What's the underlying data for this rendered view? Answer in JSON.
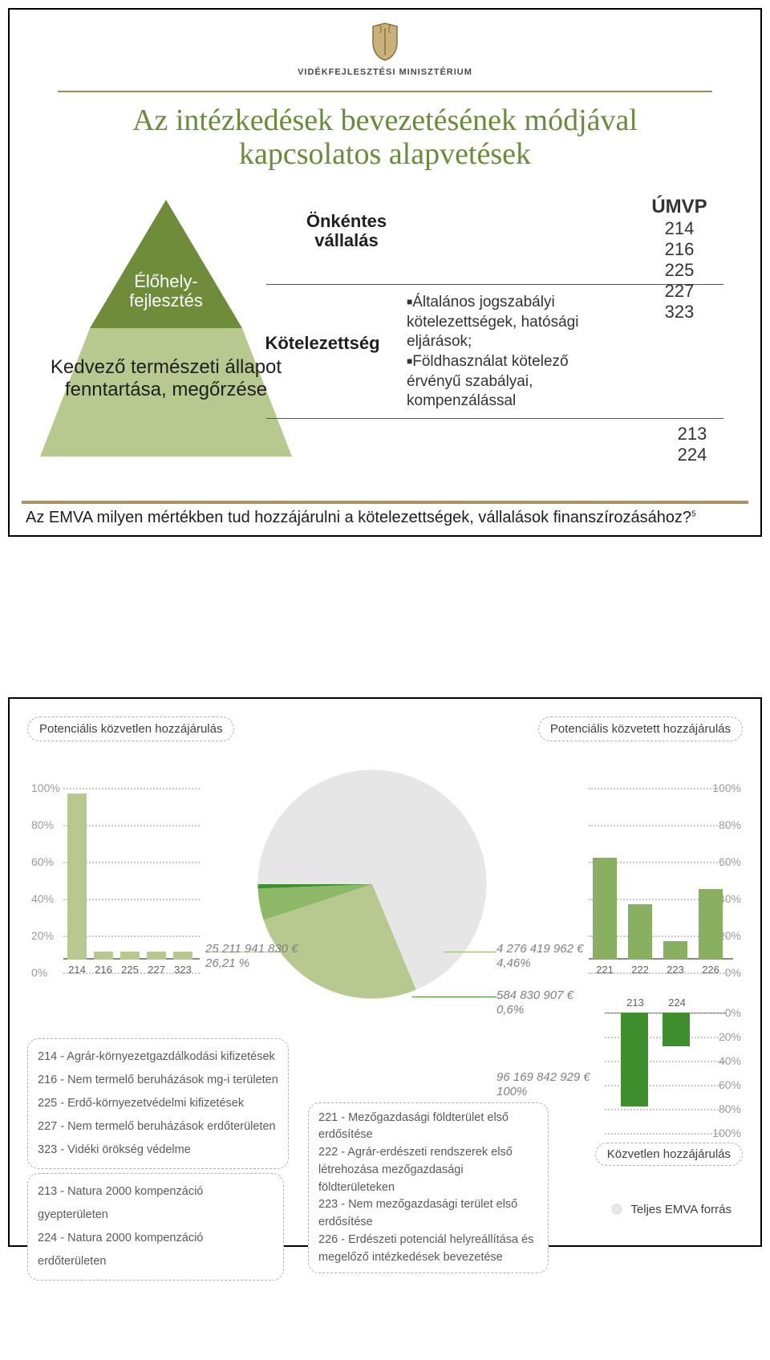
{
  "slide1": {
    "ministry": "VIDÉKFEJLESZTÉSI MINISZTÉRIUM",
    "title": "Az intézkedések bevezetésének módjával kapcsolatos alapvetések",
    "triangle": {
      "top_label": "Élőhely-\nfejlesztés",
      "bottom_label": "Kedvező természeti állapot fenntartása, megőrzése",
      "top_color": "#6e8c3a",
      "bottom_color": "#b7c98e"
    },
    "voluntary_heading": "Önkéntes vállalás",
    "obligation_heading": "Kötelezettség",
    "umvp_heading": "ÚMVP",
    "umvp_top_codes": [
      "214",
      "216",
      "225",
      "227",
      "323"
    ],
    "umvp_bottom_codes": [
      "213",
      "224"
    ],
    "bullets": [
      "Általános jogszabályi kötelezettségek, hatósági eljárások;",
      "Földhasználat kötelező érvényű szabályai, kompenzálással"
    ],
    "footer_question": "Az EMVA milyen mértékben tud hozzájárulni a kötelezettségek, vállalások finanszírozásához?",
    "footer_sup": "5"
  },
  "slide2": {
    "left_badge": "Potenciális közvetlen hozzájárulás",
    "right_badge": "Potenciális közvetett hozzájárulás",
    "direct_badge": "Közvetlen hozzájárulás",
    "total_badge": "Teljes EMVA forrás",
    "y_ticks_pct": [
      0,
      20,
      40,
      60,
      80,
      100
    ],
    "left_bars": {
      "categories": [
        "214",
        "216",
        "225",
        "227",
        "323"
      ],
      "values": [
        90,
        4,
        4,
        4,
        4
      ],
      "color": "#b7c98e"
    },
    "right_bars": {
      "categories": [
        "221",
        "222",
        "223",
        "226"
      ],
      "values": [
        55,
        30,
        10,
        38
      ],
      "color": "#88b060"
    },
    "down_bars": {
      "categories": [
        "213",
        "224"
      ],
      "values": [
        78,
        28
      ],
      "color": "#3f8f2f"
    },
    "pie": {
      "bg_color": "#e6e6e6",
      "slices": [
        {
          "label": "rest",
          "value": 68.73,
          "color": "#e6e6e6"
        },
        {
          "label": "light",
          "value": 26.21,
          "color": "#b7c98e",
          "callout_value": "25 211 941 830 €",
          "callout_pct": "26,21 %"
        },
        {
          "label": "mid",
          "value": 4.46,
          "color": "#8db867",
          "callout_value": "4 276 419 962 €",
          "callout_pct": "4,46%"
        },
        {
          "label": "dark",
          "value": 0.6,
          "color": "#3f8f2f",
          "callout_value": "584 830 907 €",
          "callout_pct": "0,6%"
        }
      ],
      "total_value": "96 169 842 929 €",
      "total_pct": "100%"
    },
    "desc_left1": [
      "214 - Agrár-környezetgazdálkodási kifizetések",
      "216 - Nem termelő beruházások mg-i területen",
      "225 - Erdő-környezetvédelmi kifizetések",
      "227 - Nem termelő beruházások erdőterületen",
      "323 - Vidéki örökség védelme"
    ],
    "desc_left2": [
      "213 - Natura 2000 kompenzáció gyepterületen",
      "224 - Natura 2000 kompenzáció erdőterületen"
    ],
    "desc_right": [
      "221 - Mezőgazdasági földterület első erdősítése",
      "222 - Agrár-erdészeti rendszerek első létrehozása mezőgazdasági földterületeken",
      "223 - Nem mezőgazdasági terület első erdősítése",
      "226 - Erdészeti potenciál helyreállítása és megelőző intézkedések bevezetése"
    ]
  }
}
